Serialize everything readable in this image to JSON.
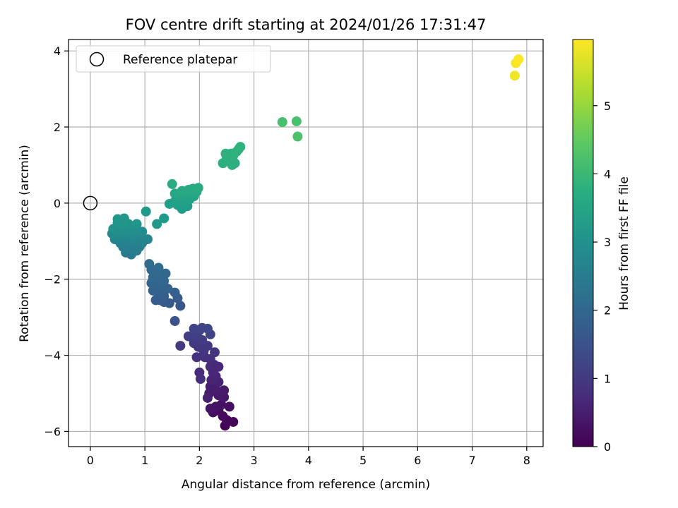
{
  "chart_data": {
    "type": "scatter",
    "title": "FOV centre drift starting at 2024/01/26 17:31:47",
    "xlabel": "Angular distance from reference (arcmin)",
    "ylabel": "Rotation from reference (arcmin)",
    "xlim": [
      -0.4,
      8.3
    ],
    "ylim": [
      -6.4,
      4.3
    ],
    "xticks": [
      0,
      1,
      2,
      3,
      4,
      5,
      6,
      7,
      8
    ],
    "yticks": [
      -6,
      -4,
      -2,
      0,
      2,
      4
    ],
    "xtick_labels": [
      "0",
      "1",
      "2",
      "3",
      "4",
      "5",
      "6",
      "7",
      "8"
    ],
    "ytick_labels": [
      "−6",
      "−4",
      "−2",
      "0",
      "2",
      "4"
    ],
    "grid": true,
    "legend": {
      "placement": "top-left",
      "entries": [
        "Reference platepar"
      ]
    },
    "reference_point": {
      "x": 0,
      "y": 0,
      "label": "Reference platepar"
    },
    "colorbar": {
      "label": "Hours from first FF file",
      "min": 0,
      "max": 5.97,
      "ticks": [
        0,
        1,
        2,
        3,
        4,
        5
      ],
      "tick_labels": [
        "0",
        "1",
        "2",
        "3",
        "4",
        "5"
      ],
      "colormap": "viridis"
    },
    "points": [
      {
        "x": 2.47,
        "y": -5.85,
        "h": 0.05
      },
      {
        "x": 2.62,
        "y": -5.75,
        "h": 0.08
      },
      {
        "x": 2.5,
        "y": -5.7,
        "h": 0.1
      },
      {
        "x": 2.43,
        "y": -5.6,
        "h": 0.15
      },
      {
        "x": 2.35,
        "y": -5.45,
        "h": 0.18
      },
      {
        "x": 2.25,
        "y": -5.5,
        "h": 0.2
      },
      {
        "x": 2.55,
        "y": -5.35,
        "h": 0.25
      },
      {
        "x": 2.4,
        "y": -5.3,
        "h": 0.28
      },
      {
        "x": 2.3,
        "y": -5.35,
        "h": 0.3
      },
      {
        "x": 2.2,
        "y": -5.4,
        "h": 0.33
      },
      {
        "x": 2.45,
        "y": -5.1,
        "h": 0.36
      },
      {
        "x": 2.35,
        "y": -5.05,
        "h": 0.4
      },
      {
        "x": 2.18,
        "y": -5.0,
        "h": 0.42
      },
      {
        "x": 2.45,
        "y": -4.92,
        "h": 0.45
      },
      {
        "x": 2.3,
        "y": -4.9,
        "h": 0.48
      },
      {
        "x": 2.2,
        "y": -4.82,
        "h": 0.5
      },
      {
        "x": 2.15,
        "y": -5.12,
        "h": 0.52
      },
      {
        "x": 2.35,
        "y": -4.7,
        "h": 0.56
      },
      {
        "x": 2.22,
        "y": -4.65,
        "h": 0.6
      },
      {
        "x": 2.3,
        "y": -4.55,
        "h": 0.62
      },
      {
        "x": 2.25,
        "y": -4.45,
        "h": 0.65
      },
      {
        "x": 2.35,
        "y": -4.3,
        "h": 0.68
      },
      {
        "x": 2.27,
        "y": -4.25,
        "h": 0.7
      },
      {
        "x": 2.2,
        "y": -4.3,
        "h": 0.72
      },
      {
        "x": 2.0,
        "y": -4.45,
        "h": 0.75
      },
      {
        "x": 2.02,
        "y": -4.62,
        "h": 0.78
      },
      {
        "x": 2.2,
        "y": -4.1,
        "h": 0.8
      },
      {
        "x": 2.1,
        "y": -4.05,
        "h": 0.83
      },
      {
        "x": 1.95,
        "y": -4.05,
        "h": 0.86
      },
      {
        "x": 2.28,
        "y": -3.92,
        "h": 0.9
      },
      {
        "x": 2.08,
        "y": -3.88,
        "h": 0.92
      },
      {
        "x": 1.98,
        "y": -3.78,
        "h": 0.95
      },
      {
        "x": 2.15,
        "y": -3.75,
        "h": 0.98
      },
      {
        "x": 1.9,
        "y": -3.68,
        "h": 1.0
      },
      {
        "x": 1.65,
        "y": -3.75,
        "h": 1.02
      },
      {
        "x": 2.05,
        "y": -3.6,
        "h": 1.05
      },
      {
        "x": 1.88,
        "y": -3.55,
        "h": 1.08
      },
      {
        "x": 1.8,
        "y": -3.5,
        "h": 1.1
      },
      {
        "x": 1.95,
        "y": -3.45,
        "h": 1.13
      },
      {
        "x": 2.2,
        "y": -3.45,
        "h": 1.16
      },
      {
        "x": 2.0,
        "y": -3.35,
        "h": 1.18
      },
      {
        "x": 1.9,
        "y": -3.3,
        "h": 1.2
      },
      {
        "x": 2.05,
        "y": -3.28,
        "h": 1.22
      },
      {
        "x": 2.15,
        "y": -3.3,
        "h": 1.25
      },
      {
        "x": 1.55,
        "y": -3.1,
        "h": 1.5
      },
      {
        "x": 1.65,
        "y": -2.7,
        "h": 1.62
      },
      {
        "x": 1.45,
        "y": -2.63,
        "h": 1.65
      },
      {
        "x": 1.35,
        "y": -2.6,
        "h": 1.68
      },
      {
        "x": 1.28,
        "y": -2.55,
        "h": 1.7
      },
      {
        "x": 1.2,
        "y": -2.55,
        "h": 1.72
      },
      {
        "x": 1.6,
        "y": -2.5,
        "h": 1.75
      },
      {
        "x": 1.35,
        "y": -2.45,
        "h": 1.78
      },
      {
        "x": 1.55,
        "y": -2.35,
        "h": 1.8
      },
      {
        "x": 1.25,
        "y": -2.35,
        "h": 1.82
      },
      {
        "x": 1.15,
        "y": -2.3,
        "h": 1.84
      },
      {
        "x": 1.42,
        "y": -2.25,
        "h": 1.86
      },
      {
        "x": 1.3,
        "y": -2.2,
        "h": 1.88
      },
      {
        "x": 1.22,
        "y": -2.15,
        "h": 1.9
      },
      {
        "x": 1.12,
        "y": -2.1,
        "h": 1.92
      },
      {
        "x": 1.35,
        "y": -2.05,
        "h": 1.94
      },
      {
        "x": 1.25,
        "y": -2.0,
        "h": 1.96
      },
      {
        "x": 1.15,
        "y": -1.95,
        "h": 1.98
      },
      {
        "x": 1.3,
        "y": -1.9,
        "h": 2.0
      },
      {
        "x": 1.38,
        "y": -1.85,
        "h": 2.02
      },
      {
        "x": 1.2,
        "y": -1.82,
        "h": 2.04
      },
      {
        "x": 1.12,
        "y": -1.75,
        "h": 2.06
      },
      {
        "x": 1.25,
        "y": -1.7,
        "h": 2.08
      },
      {
        "x": 1.08,
        "y": -1.6,
        "h": 2.1
      },
      {
        "x": 0.75,
        "y": -1.35,
        "h": 2.45
      },
      {
        "x": 0.65,
        "y": -1.3,
        "h": 2.48
      },
      {
        "x": 0.85,
        "y": -1.25,
        "h": 2.5
      },
      {
        "x": 0.72,
        "y": -1.2,
        "h": 2.52
      },
      {
        "x": 0.9,
        "y": -1.15,
        "h": 2.54
      },
      {
        "x": 0.6,
        "y": -1.15,
        "h": 2.56
      },
      {
        "x": 0.8,
        "y": -1.1,
        "h": 2.58
      },
      {
        "x": 0.7,
        "y": -1.08,
        "h": 2.6
      },
      {
        "x": 0.95,
        "y": -1.05,
        "h": 2.62
      },
      {
        "x": 0.55,
        "y": -1.05,
        "h": 2.64
      },
      {
        "x": 0.65,
        "y": -1.0,
        "h": 2.66
      },
      {
        "x": 0.85,
        "y": -0.98,
        "h": 2.68
      },
      {
        "x": 1.05,
        "y": -0.95,
        "h": 2.7
      },
      {
        "x": 0.45,
        "y": -0.95,
        "h": 2.72
      },
      {
        "x": 0.75,
        "y": -0.92,
        "h": 2.74
      },
      {
        "x": 0.6,
        "y": -0.9,
        "h": 2.76
      },
      {
        "x": 0.92,
        "y": -0.88,
        "h": 2.78
      },
      {
        "x": 0.5,
        "y": -0.85,
        "h": 2.8
      },
      {
        "x": 0.7,
        "y": -0.82,
        "h": 2.82
      },
      {
        "x": 0.82,
        "y": -0.8,
        "h": 2.84
      },
      {
        "x": 0.4,
        "y": -0.8,
        "h": 2.86
      },
      {
        "x": 0.6,
        "y": -0.78,
        "h": 2.88
      },
      {
        "x": 0.95,
        "y": -0.75,
        "h": 2.9
      },
      {
        "x": 0.5,
        "y": -0.72,
        "h": 2.92
      },
      {
        "x": 0.72,
        "y": -0.7,
        "h": 2.94
      },
      {
        "x": 0.85,
        "y": -0.68,
        "h": 2.96
      },
      {
        "x": 0.42,
        "y": -0.68,
        "h": 2.98
      },
      {
        "x": 0.6,
        "y": -0.65,
        "h": 3.0
      },
      {
        "x": 0.78,
        "y": -0.62,
        "h": 3.02
      },
      {
        "x": 0.55,
        "y": -0.58,
        "h": 3.04
      },
      {
        "x": 0.7,
        "y": -0.55,
        "h": 3.06
      },
      {
        "x": 0.85,
        "y": -0.55,
        "h": 3.08
      },
      {
        "x": 0.5,
        "y": -0.52,
        "h": 3.1
      },
      {
        "x": 0.62,
        "y": -0.48,
        "h": 3.12
      },
      {
        "x": 0.5,
        "y": -0.42,
        "h": 3.14
      },
      {
        "x": 0.62,
        "y": -0.4,
        "h": 3.16
      },
      {
        "x": 1.22,
        "y": -0.55,
        "h": 3.2
      },
      {
        "x": 1.35,
        "y": -0.4,
        "h": 3.22
      },
      {
        "x": 1.02,
        "y": -0.22,
        "h": 3.24
      },
      {
        "x": 1.68,
        "y": -0.15,
        "h": 3.3
      },
      {
        "x": 1.78,
        "y": -0.08,
        "h": 3.32
      },
      {
        "x": 1.6,
        "y": -0.05,
        "h": 3.34
      },
      {
        "x": 1.45,
        "y": -0.02,
        "h": 3.36
      },
      {
        "x": 1.72,
        "y": 0.02,
        "h": 3.38
      },
      {
        "x": 1.55,
        "y": 0.05,
        "h": 3.4
      },
      {
        "x": 1.82,
        "y": 0.1,
        "h": 3.42
      },
      {
        "x": 1.7,
        "y": 0.15,
        "h": 3.44
      },
      {
        "x": 1.9,
        "y": 0.18,
        "h": 3.46
      },
      {
        "x": 1.6,
        "y": 0.22,
        "h": 3.48
      },
      {
        "x": 1.75,
        "y": 0.25,
        "h": 3.5
      },
      {
        "x": 1.55,
        "y": 0.25,
        "h": 3.52
      },
      {
        "x": 1.85,
        "y": 0.3,
        "h": 3.54
      },
      {
        "x": 1.95,
        "y": 0.3,
        "h": 3.56
      },
      {
        "x": 1.68,
        "y": 0.32,
        "h": 3.58
      },
      {
        "x": 1.8,
        "y": 0.35,
        "h": 3.6
      },
      {
        "x": 1.88,
        "y": 0.38,
        "h": 3.62
      },
      {
        "x": 1.98,
        "y": 0.4,
        "h": 3.64
      },
      {
        "x": 1.5,
        "y": 0.5,
        "h": 3.66
      },
      {
        "x": 2.43,
        "y": 1.05,
        "h": 3.75
      },
      {
        "x": 2.6,
        "y": 1.0,
        "h": 3.76
      },
      {
        "x": 2.65,
        "y": 1.05,
        "h": 3.77
      },
      {
        "x": 2.5,
        "y": 1.2,
        "h": 3.78
      },
      {
        "x": 2.62,
        "y": 1.25,
        "h": 3.79
      },
      {
        "x": 2.48,
        "y": 1.3,
        "h": 3.8
      },
      {
        "x": 2.58,
        "y": 1.3,
        "h": 3.81
      },
      {
        "x": 2.68,
        "y": 1.35,
        "h": 3.82
      },
      {
        "x": 2.72,
        "y": 1.42,
        "h": 3.83
      },
      {
        "x": 2.75,
        "y": 1.48,
        "h": 3.84
      },
      {
        "x": 3.52,
        "y": 2.13,
        "h": 4.2
      },
      {
        "x": 3.78,
        "y": 2.15,
        "h": 4.22
      },
      {
        "x": 3.8,
        "y": 1.75,
        "h": 4.25
      },
      {
        "x": 7.78,
        "y": 3.35,
        "h": 5.85
      },
      {
        "x": 7.8,
        "y": 3.68,
        "h": 5.9
      },
      {
        "x": 7.85,
        "y": 3.78,
        "h": 5.95
      }
    ]
  }
}
